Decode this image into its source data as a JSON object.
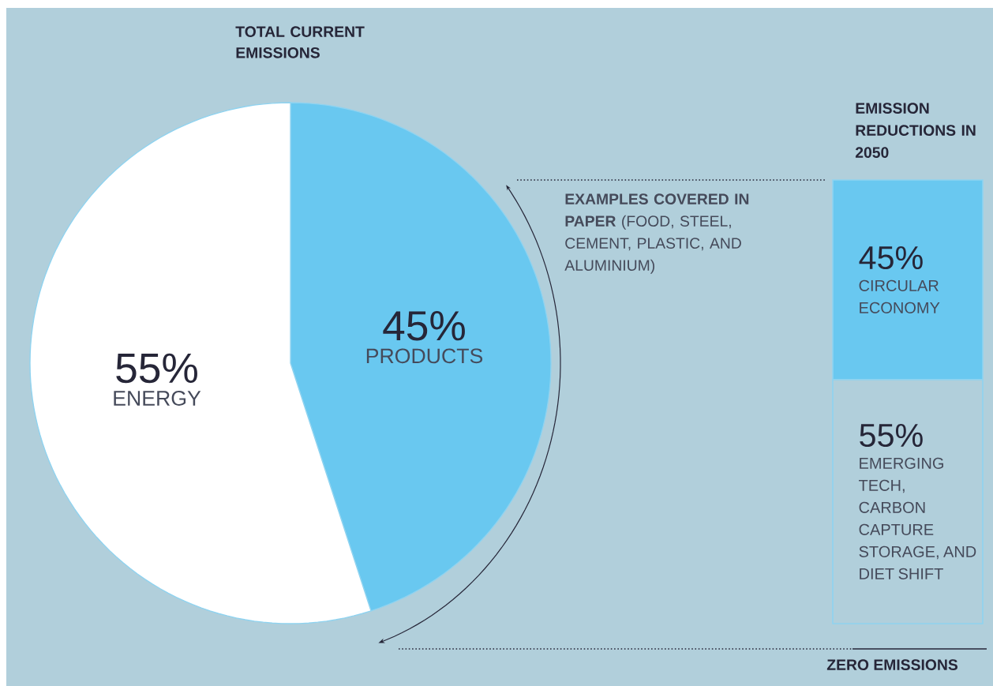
{
  "chart_data": [
    {
      "type": "pie",
      "title": "TOTAL CURRENT EMISSIONS",
      "categories": [
        "PRODUCTS",
        "ENERGY"
      ],
      "values": [
        45,
        55
      ],
      "colors": [
        "#69c8f0",
        "#ffffff"
      ],
      "value_labels": [
        "45%",
        "55%"
      ],
      "annotations": [
        "**EXAMPLES COVERED IN PAPER** (FOOD, STEEL, CEMENT, PLASTIC, AND ALUMINIUM)"
      ]
    },
    {
      "type": "bar",
      "stacked": true,
      "title": "EMISSION REDUCTIONS IN 2050",
      "categories": [
        null
      ],
      "series": [
        {
          "name": "EMERGING TECH, CARBON CAPTURE STORAGE, AND DIET SHIFT",
          "color": "#b1cfdb",
          "values": [
            55
          ],
          "value_labels": [
            "55%"
          ]
        },
        {
          "name": "CIRCULAR ECONOMY",
          "color": "#69c8f0",
          "values": [
            45
          ],
          "value_labels": [
            "45%"
          ]
        }
      ],
      "annotations": [
        "ZERO EMISSIONS"
      ]
    }
  ]
}
